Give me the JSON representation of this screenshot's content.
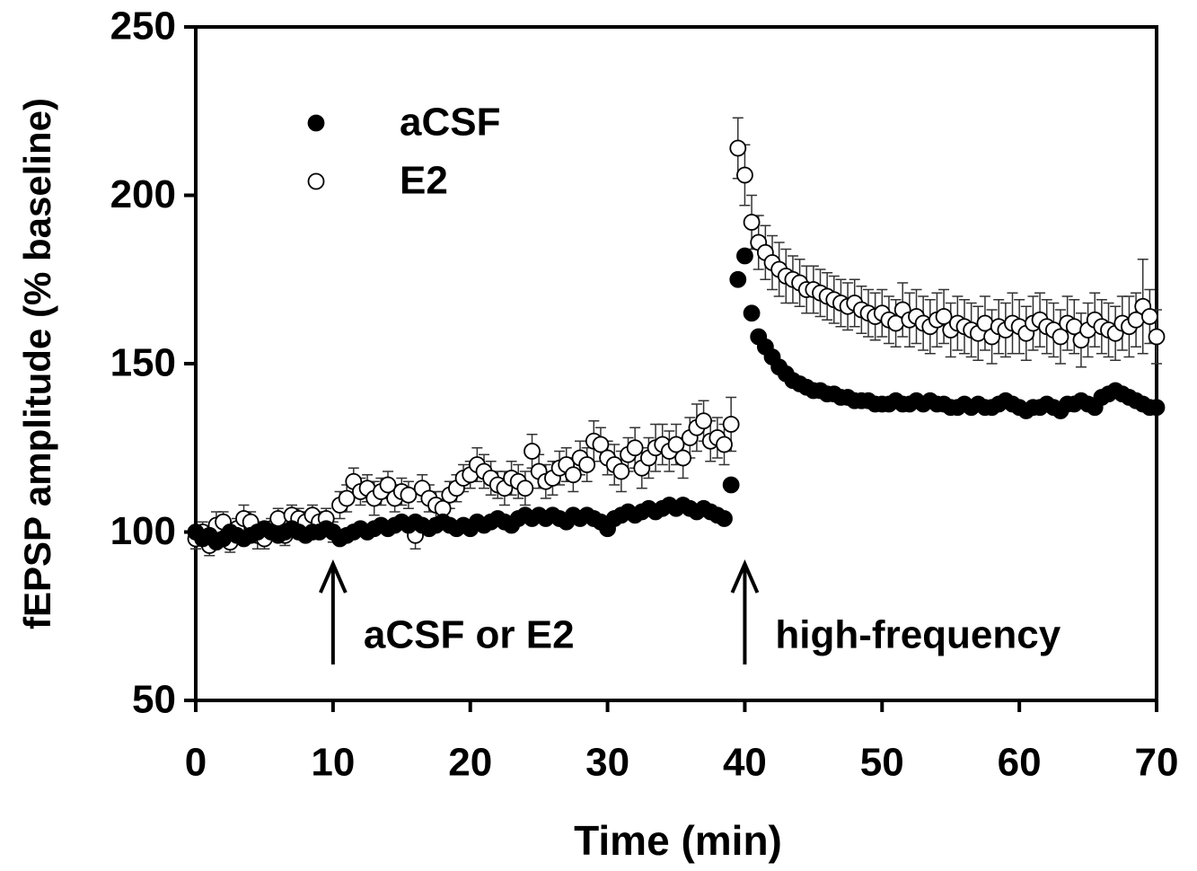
{
  "chart_data": {
    "type": "scatter",
    "xlabel": "Time (min)",
    "ylabel": "fEPSP amplitude (% baseline)",
    "xlim": [
      0,
      70
    ],
    "xticks": [
      0,
      10,
      20,
      30,
      40,
      50,
      60,
      70
    ],
    "ylim": [
      50,
      250
    ],
    "yticks": [
      50,
      100,
      150,
      200,
      250
    ],
    "grid": false,
    "legend": "upper left",
    "annotations": [
      {
        "text": "aCSF or E2",
        "x": 10
      },
      {
        "text": "high-frequency",
        "x": 40
      }
    ],
    "x": [
      0,
      0.5,
      1,
      1.5,
      2,
      2.5,
      3,
      3.5,
      4,
      4.5,
      5,
      5.5,
      6,
      6.5,
      7,
      7.5,
      8,
      8.5,
      9,
      9.5,
      10,
      10.5,
      11,
      11.5,
      12,
      12.5,
      13,
      13.5,
      14,
      14.5,
      15,
      15.5,
      16,
      16.5,
      17,
      17.5,
      18,
      18.5,
      19,
      19.5,
      20,
      20.5,
      21,
      21.5,
      22,
      22.5,
      23,
      23.5,
      24,
      24.5,
      25,
      25.5,
      26,
      26.5,
      27,
      27.5,
      28,
      28.5,
      29,
      29.5,
      30,
      30.5,
      31,
      31.5,
      32,
      32.5,
      33,
      33.5,
      34,
      34.5,
      35,
      35.5,
      36,
      36.5,
      37,
      37.5,
      38,
      38.5,
      39,
      39.5,
      40,
      40.5,
      41,
      41.5,
      42,
      42.5,
      43,
      43.5,
      44,
      44.5,
      45,
      45.5,
      46,
      46.5,
      47,
      47.5,
      48,
      48.5,
      49,
      49.5,
      50,
      50.5,
      51,
      51.5,
      52,
      52.5,
      53,
      53.5,
      54,
      54.5,
      55,
      55.5,
      56,
      56.5,
      57,
      57.5,
      58,
      58.5,
      59,
      59.5,
      60,
      60.5,
      61,
      61.5,
      62,
      62.5,
      63,
      63.5,
      64,
      64.5,
      65,
      65.5,
      66,
      66.5,
      67,
      67.5,
      68,
      68.5,
      69,
      69.5,
      70
    ],
    "series": [
      {
        "name": "E2",
        "color": "#ffffff",
        "marker": "open",
        "values": [
          98,
          100,
          96,
          102,
          103,
          97,
          101,
          104,
          103,
          99,
          98,
          101,
          104,
          99,
          105,
          104,
          103,
          105,
          103,
          104,
          100,
          108,
          110,
          115,
          112,
          113,
          110,
          112,
          114,
          110,
          112,
          111,
          99,
          113,
          110,
          108,
          107,
          111,
          113,
          116,
          117,
          120,
          118,
          116,
          114,
          113,
          116,
          115,
          113,
          124,
          118,
          115,
          116,
          119,
          120,
          117,
          122,
          120,
          127,
          126,
          122,
          120,
          118,
          123,
          125,
          119,
          122,
          125,
          126,
          124,
          126,
          122,
          128,
          131,
          133,
          127,
          128,
          126,
          132,
          214,
          206,
          192,
          186,
          183,
          180,
          178,
          176,
          175,
          174,
          172,
          172,
          171,
          170,
          169,
          168,
          167,
          168,
          166,
          165,
          164,
          165,
          163,
          162,
          166,
          163,
          164,
          162,
          161,
          163,
          164,
          160,
          162,
          161,
          160,
          159,
          162,
          158,
          161,
          160,
          162,
          161,
          159,
          162,
          163,
          161,
          160,
          158,
          162,
          161,
          157,
          160,
          163,
          161,
          160,
          159,
          162,
          161,
          163,
          167,
          164,
          158
        ],
        "errors": [
          3,
          3,
          3,
          4,
          3,
          3,
          3,
          4,
          3,
          4,
          3,
          3,
          3,
          3,
          3,
          3,
          3,
          3,
          3,
          3,
          3,
          4,
          4,
          4,
          4,
          4,
          5,
          4,
          4,
          4,
          4,
          4,
          4,
          4,
          4,
          4,
          5,
          4,
          4,
          4,
          4,
          5,
          5,
          5,
          4,
          5,
          5,
          5,
          5,
          5,
          5,
          5,
          5,
          5,
          5,
          5,
          5,
          5,
          6,
          5,
          5,
          6,
          6,
          5,
          6,
          6,
          6,
          7,
          6,
          6,
          6,
          6,
          6,
          7,
          6,
          6,
          6,
          6,
          8,
          9,
          9,
          8,
          8,
          8,
          8,
          8,
          8,
          7,
          7,
          7,
          7,
          7,
          7,
          7,
          7,
          7,
          7,
          7,
          7,
          7,
          7,
          7,
          7,
          8,
          8,
          8,
          8,
          8,
          8,
          8,
          8,
          8,
          8,
          8,
          8,
          8,
          8,
          8,
          8,
          9,
          8,
          8,
          8,
          8,
          8,
          8,
          8,
          8,
          8,
          8,
          8,
          8,
          8,
          8,
          8,
          8,
          9,
          8,
          14,
          8,
          8
        ]
      },
      {
        "name": "aCSF",
        "color": "#000000",
        "marker": "filled",
        "values": [
          100,
          98,
          99,
          97,
          98,
          100,
          99,
          98,
          99,
          100,
          101,
          100,
          99,
          100,
          101,
          100,
          99,
          100,
          100,
          101,
          100,
          98,
          99,
          100,
          101,
          100,
          101,
          102,
          101,
          102,
          103,
          102,
          103,
          102,
          101,
          102,
          103,
          102,
          101,
          102,
          101,
          103,
          102,
          103,
          104,
          103,
          102,
          104,
          105,
          104,
          105,
          104,
          105,
          104,
          103,
          105,
          104,
          105,
          104,
          103,
          101,
          104,
          105,
          106,
          105,
          106,
          107,
          106,
          107,
          108,
          107,
          108,
          107,
          106,
          107,
          106,
          105,
          104,
          114,
          175,
          182,
          165,
          158,
          155,
          152,
          149,
          147,
          145,
          144,
          143,
          142,
          142,
          141,
          141,
          140,
          140,
          139,
          139,
          139,
          138,
          138,
          138,
          139,
          138,
          138,
          139,
          138,
          139,
          138,
          138,
          137,
          137,
          138,
          137,
          138,
          137,
          137,
          138,
          139,
          138,
          137,
          136,
          137,
          137,
          138,
          137,
          136,
          138,
          138,
          139,
          138,
          137,
          140,
          141,
          142,
          141,
          140,
          139,
          138,
          137,
          137
        ]
      }
    ]
  }
}
